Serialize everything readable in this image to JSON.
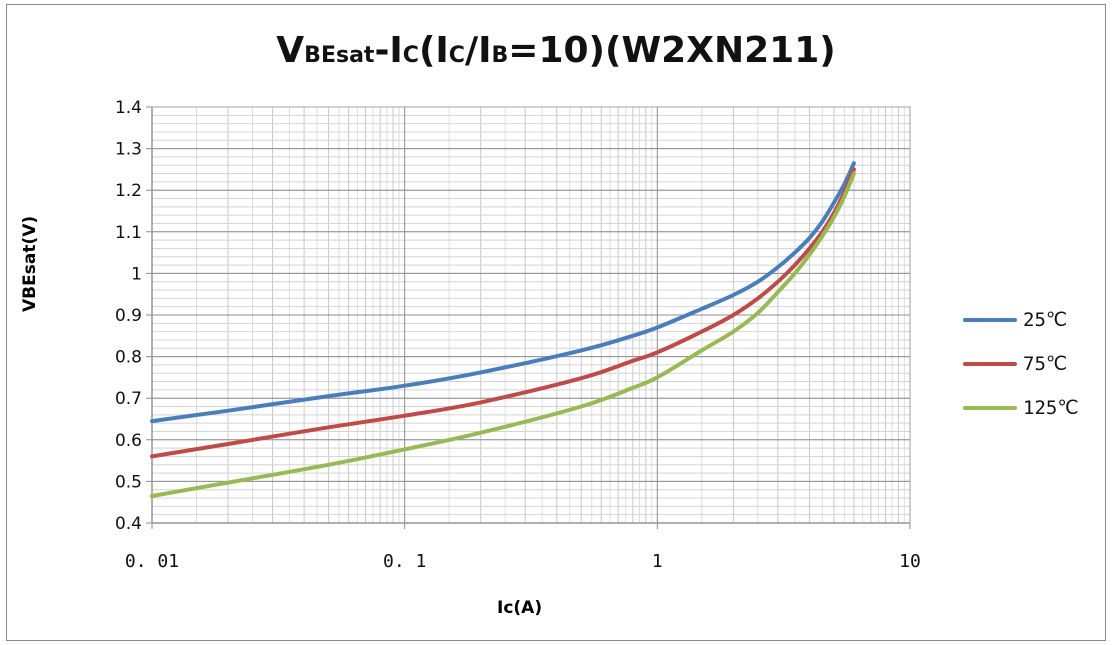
{
  "chart_data": {
    "type": "line",
    "title": {
      "parts": [
        {
          "text": "V",
          "size": "main"
        },
        {
          "text": "BEsat",
          "size": "sub"
        },
        {
          "text": "-I",
          "size": "main"
        },
        {
          "text": "C",
          "size": "sub"
        },
        {
          "text": "(I",
          "size": "main"
        },
        {
          "text": "C",
          "size": "sub"
        },
        {
          "text": "/I",
          "size": "main"
        },
        {
          "text": "B",
          "size": "sub"
        },
        {
          "text": "=10)(W2XN211)",
          "size": "main"
        }
      ]
    },
    "xlabel": "Ic(A)",
    "ylabel": "VBEsat(V)",
    "xscale": "log",
    "xlim": [
      0.01,
      10
    ],
    "ylim": [
      0.4,
      1.4
    ],
    "xticks": [
      {
        "value": 0.01,
        "label": "0. 01"
      },
      {
        "value": 0.1,
        "label": "0. 1"
      },
      {
        "value": 1,
        "label": "1"
      },
      {
        "value": 10,
        "label": "10"
      }
    ],
    "yticks": [
      {
        "value": 0.4,
        "label": "0.4"
      },
      {
        "value": 0.5,
        "label": "0.5"
      },
      {
        "value": 0.6,
        "label": "0.6"
      },
      {
        "value": 0.7,
        "label": "0.7"
      },
      {
        "value": 0.8,
        "label": "0.8"
      },
      {
        "value": 0.9,
        "label": "0.9"
      },
      {
        "value": 1.0,
        "label": "1"
      },
      {
        "value": 1.1,
        "label": "1.1"
      },
      {
        "value": 1.2,
        "label": "1.2"
      },
      {
        "value": 1.3,
        "label": "1.3"
      },
      {
        "value": 1.4,
        "label": "1.4"
      }
    ],
    "grid": true,
    "legend_position": "right",
    "series": [
      {
        "name": "25℃",
        "color": "#4a7ebb",
        "x": [
          0.01,
          0.02,
          0.05,
          0.1,
          0.2,
          0.5,
          0.8,
          1,
          1.5,
          2,
          2.5,
          3,
          3.5,
          4,
          4.5,
          5,
          5.5,
          6
        ],
        "y": [
          0.645,
          0.67,
          0.705,
          0.73,
          0.762,
          0.815,
          0.85,
          0.87,
          0.915,
          0.948,
          0.98,
          1.015,
          1.05,
          1.085,
          1.125,
          1.17,
          1.215,
          1.265
        ]
      },
      {
        "name": "75℃",
        "color": "#be4b48",
        "x": [
          0.01,
          0.02,
          0.05,
          0.1,
          0.2,
          0.5,
          0.8,
          1,
          1.5,
          2,
          2.5,
          3,
          3.5,
          4,
          4.5,
          5,
          5.5,
          6
        ],
        "y": [
          0.56,
          0.59,
          0.63,
          0.658,
          0.69,
          0.748,
          0.79,
          0.81,
          0.86,
          0.9,
          0.94,
          0.98,
          1.02,
          1.06,
          1.1,
          1.145,
          1.195,
          1.25
        ]
      },
      {
        "name": "125℃",
        "color": "#98b954",
        "x": [
          0.01,
          0.02,
          0.05,
          0.1,
          0.2,
          0.5,
          0.8,
          1,
          1.5,
          2,
          2.5,
          3,
          3.5,
          4,
          4.5,
          5,
          5.5,
          6
        ],
        "y": [
          0.465,
          0.497,
          0.54,
          0.577,
          0.617,
          0.68,
          0.725,
          0.75,
          0.815,
          0.86,
          0.905,
          0.955,
          1.0,
          1.045,
          1.09,
          1.135,
          1.185,
          1.24
        ]
      }
    ]
  }
}
